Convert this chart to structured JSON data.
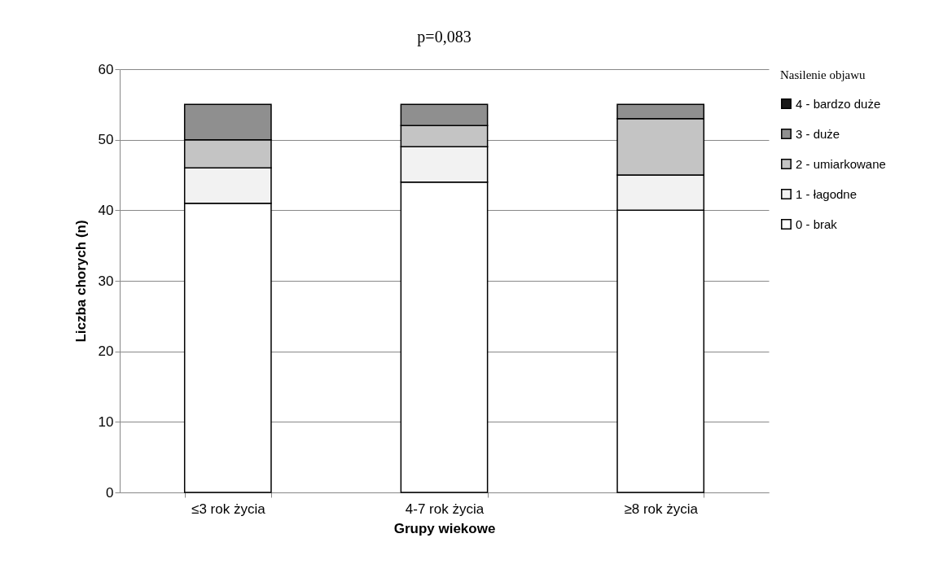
{
  "chart_data": {
    "type": "bar",
    "stacked": true,
    "title": "p=0,083",
    "xlabel": "Grupy wiekowe",
    "ylabel": "Liczba chorych (n)",
    "legend_title": "Nasilenie objawu",
    "categories": [
      "≤3 rok życia",
      "4-7 rok życia",
      "≥8 rok życia"
    ],
    "series": [
      {
        "name": "0 - brak",
        "color": "#ffffff",
        "values": [
          41,
          44,
          40
        ]
      },
      {
        "name": "1 - łagodne",
        "color": "#f2f2f2",
        "values": [
          5,
          5,
          5
        ]
      },
      {
        "name": "2 - umiarkowane",
        "color": "#c4c4c4",
        "values": [
          4,
          3,
          8
        ]
      },
      {
        "name": "3 - duże",
        "color": "#8f8f8f",
        "values": [
          5,
          3,
          2
        ]
      },
      {
        "name": "4 - bardzo duże",
        "color": "#1a1a1a",
        "values": [
          0,
          0,
          0
        ]
      }
    ],
    "ylim": [
      0,
      60
    ],
    "yticks": [
      0,
      10,
      20,
      30,
      40,
      50,
      60
    ],
    "grid": "y",
    "legend": "right"
  }
}
